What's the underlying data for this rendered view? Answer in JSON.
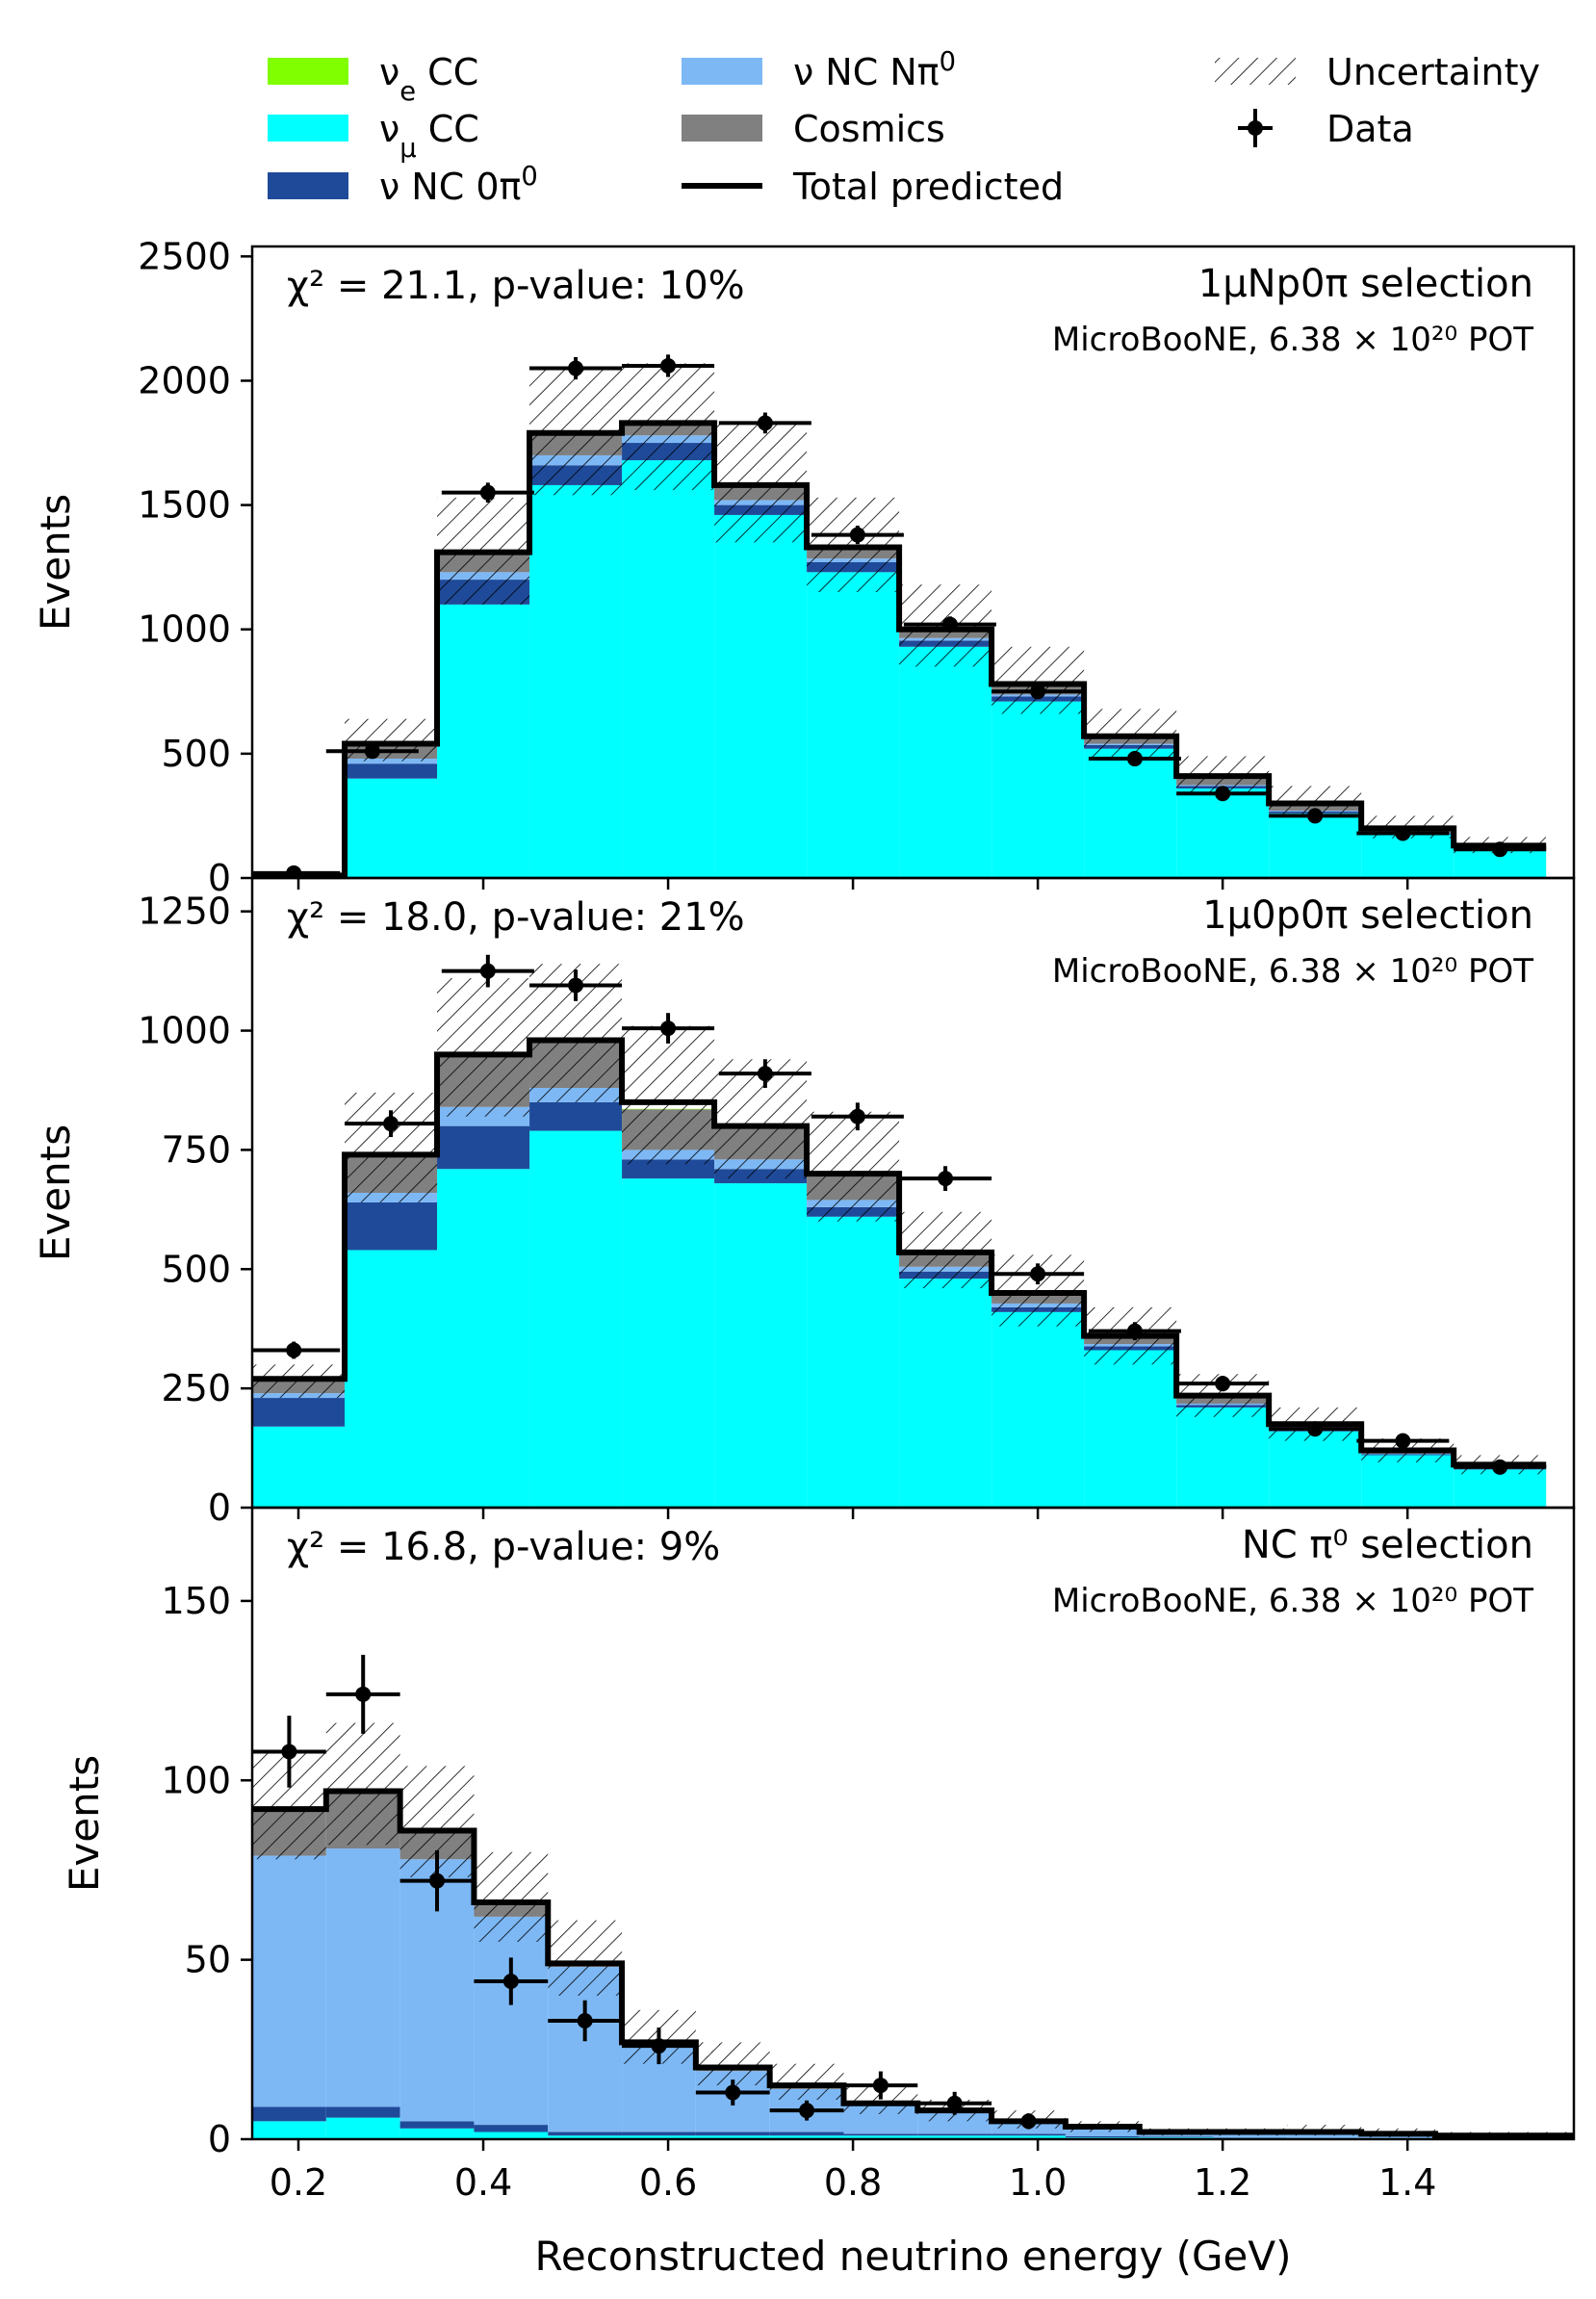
{
  "chart_data": {
    "type": "bar",
    "xlabel": "Reconstructed neutrino energy (GeV)",
    "xlim": [
      0.15,
      1.58
    ],
    "xticks": [
      "0.2",
      "0.4",
      "0.6",
      "0.8",
      "1.0",
      "1.2",
      "1.4"
    ],
    "xtick_values": [
      0.2,
      0.4,
      0.6,
      0.8,
      1.0,
      1.2,
      1.4
    ],
    "bin_edges": [
      0.15,
      0.25,
      0.35,
      0.45,
      0.55,
      0.65,
      0.75,
      0.85,
      0.95,
      1.05,
      1.15,
      1.25,
      1.35,
      1.45,
      1.55
    ],
    "colors": {
      "nue_cc": "#7fff00",
      "numu_cc": "#00ffff",
      "nc_0pi0": "#1f4a99",
      "nc_npi0": "#7db8f5",
      "cosmics": "#808080",
      "total": "#000000",
      "data": "#000000"
    },
    "legend": {
      "placement": "top",
      "items": [
        {
          "key": "nue_cc",
          "label_main": "ν",
          "label_sub": "e",
          "label_rest": " CC",
          "kind": "patch",
          "color": "#7fff00"
        },
        {
          "key": "numu_cc",
          "label_main": "ν",
          "label_sub": "μ",
          "label_rest": " CC",
          "kind": "patch",
          "color": "#00ffff"
        },
        {
          "key": "nc_0pi0",
          "label_main": "ν NC 0π",
          "label_sup": "0",
          "kind": "patch",
          "color": "#1f4a99"
        },
        {
          "key": "nc_npi0",
          "label_main": "ν NC Nπ",
          "label_sup": "0",
          "kind": "patch",
          "color": "#7db8f5"
        },
        {
          "key": "cosmics",
          "label_main": "Cosmics",
          "kind": "patch",
          "color": "#808080"
        },
        {
          "key": "total",
          "label_main": "Total predicted",
          "kind": "line",
          "color": "#000000"
        },
        {
          "key": "unc",
          "label_main": "Uncertainty",
          "kind": "hatch"
        },
        {
          "key": "data",
          "label_main": "Data",
          "kind": "errorbar"
        }
      ]
    },
    "panels": [
      {
        "ylabel": "Events",
        "ylim": [
          0,
          2540
        ],
        "yticks": [
          0,
          500,
          1000,
          1500,
          2000,
          2500
        ],
        "ytick_labels": [
          "0",
          "500",
          "1000",
          "1500",
          "2000",
          "2500"
        ],
        "chi2_label": "χ² = 21.1, p-value: 10%",
        "selection_label": "1μNp0π selection",
        "experiment_label": "MicroBooNE, 6.38 × 10²⁰ POT",
        "series": [
          {
            "key": "nue_cc",
            "name": "νe CC",
            "values": [
              0,
              0,
              2,
              3,
              3,
              3,
              3,
              2,
              2,
              2,
              2,
              1,
              1,
              1
            ]
          },
          {
            "key": "numu_cc",
            "name": "νμ CC",
            "values": [
              10,
              400,
              1100,
              1580,
              1680,
              1460,
              1230,
              930,
              710,
              520,
              360,
              260,
              175,
              112
            ]
          },
          {
            "key": "nc_0pi0",
            "name": "ν NC 0π0",
            "values": [
              0,
              60,
              100,
              80,
              70,
              40,
              40,
              25,
              20,
              15,
              10,
              8,
              5,
              3
            ]
          },
          {
            "key": "nc_npi0",
            "name": "ν NC Nπ0",
            "values": [
              0,
              20,
              30,
              40,
              30,
              20,
              15,
              10,
              8,
              5,
              4,
              3,
              2,
              1
            ]
          },
          {
            "key": "cosmics",
            "name": "Cosmics",
            "values": [
              0,
              60,
              80,
              90,
              50,
              60,
              40,
              30,
              40,
              30,
              30,
              30,
              20,
              13
            ]
          }
        ],
        "total": [
          10,
          540,
          1310,
          1790,
          1830,
          1580,
          1330,
          1000,
          780,
          570,
          410,
          300,
          200,
          130
        ],
        "unc_low": [
          8,
          470,
          1100,
          1540,
          1560,
          1350,
          1150,
          850,
          660,
          480,
          340,
          250,
          160,
          100
        ],
        "unc_high": [
          14,
          640,
          1530,
          2050,
          2070,
          1830,
          1530,
          1180,
          930,
          680,
          490,
          370,
          250,
          165
        ],
        "data": {
          "x": [
            0.195,
            0.28,
            0.405,
            0.5,
            0.6,
            0.705,
            0.805,
            0.905,
            1.0,
            1.105,
            1.2,
            1.3,
            1.395,
            1.5
          ],
          "y": [
            20,
            510,
            1550,
            2050,
            2060,
            1830,
            1380,
            1020,
            750,
            480,
            340,
            250,
            180,
            115
          ],
          "yerr": [
            5,
            22,
            40,
            45,
            45,
            42,
            37,
            32,
            27,
            22,
            18,
            16,
            13,
            11
          ],
          "xerr": [
            0.05,
            0.05,
            0.05,
            0.05,
            0.05,
            0.05,
            0.05,
            0.05,
            0.05,
            0.05,
            0.05,
            0.05,
            0.05,
            0.05
          ]
        }
      },
      {
        "ylabel": "Events",
        "ylim": [
          0,
          1320
        ],
        "yticks": [
          0,
          250,
          500,
          750,
          1000,
          1250
        ],
        "ytick_labels": [
          "0",
          "250",
          "500",
          "750",
          "1000",
          "1250"
        ],
        "chi2_label": "χ² = 18.0, p-value: 21%",
        "selection_label": "1μ0p0π selection",
        "experiment_label": "MicroBooNE, 6.38 × 10²⁰ POT",
        "series": [
          {
            "key": "nue_cc",
            "name": "νe CC",
            "values": [
              0,
              0,
              0,
              0,
              1,
              1,
              1,
              1,
              1,
              1,
              1,
              0,
              0,
              0
            ]
          },
          {
            "key": "numu_cc",
            "name": "νμ CC",
            "values": [
              170,
              540,
              710,
              790,
              690,
              680,
              610,
              480,
              410,
              330,
              210,
              160,
              110,
              80
            ]
          },
          {
            "key": "nc_0pi0",
            "name": "ν NC 0π0",
            "values": [
              60,
              100,
              90,
              60,
              40,
              30,
              20,
              15,
              10,
              8,
              5,
              3,
              2,
              1
            ]
          },
          {
            "key": "nc_npi0",
            "name": "ν NC Nπ0",
            "values": [
              10,
              20,
              40,
              30,
              20,
              20,
              15,
              10,
              8,
              5,
              3,
              2,
              1,
              1
            ]
          },
          {
            "key": "cosmics",
            "name": "Cosmics",
            "values": [
              30,
              80,
              110,
              100,
              85,
              70,
              55,
              30,
              20,
              16,
              16,
              9,
              7,
              8
            ]
          }
        ],
        "total": [
          270,
          740,
          950,
          980,
          850,
          800,
          700,
          535,
          450,
          360,
          235,
          175,
          120,
          90
        ],
        "unc_low": [
          230,
          640,
          820,
          850,
          720,
          690,
          600,
          460,
          380,
          300,
          190,
          140,
          95,
          70
        ],
        "unc_high": [
          300,
          870,
          1110,
          1140,
          1010,
          940,
          830,
          620,
          530,
          420,
          280,
          210,
          145,
          110
        ],
        "data": {
          "x": [
            0.195,
            0.3,
            0.405,
            0.5,
            0.6,
            0.705,
            0.805,
            0.9,
            1.0,
            1.105,
            1.2,
            1.3,
            1.395,
            1.5
          ],
          "y": [
            330,
            805,
            1125,
            1095,
            1005,
            910,
            820,
            690,
            490,
            370,
            260,
            165,
            140,
            85
          ],
          "yerr": [
            18,
            28,
            34,
            33,
            32,
            30,
            29,
            26,
            22,
            19,
            16,
            13,
            12,
            9
          ],
          "xerr": [
            0.05,
            0.05,
            0.05,
            0.05,
            0.05,
            0.05,
            0.05,
            0.05,
            0.05,
            0.05,
            0.05,
            0.05,
            0.05,
            0.05
          ]
        }
      },
      {
        "ylabel": "Events",
        "ylim": [
          0,
          176
        ],
        "yticks": [
          0,
          50,
          100,
          150
        ],
        "ytick_labels": [
          "0",
          "50",
          "100",
          "150"
        ],
        "chi2_label": "χ² = 16.8, p-value: 9%",
        "selection_label": "NC π⁰ selection",
        "experiment_label": "MicroBooNE, 6.38 × 10²⁰ POT",
        "bin_edges": [
          0.15,
          0.23,
          0.31,
          0.39,
          0.47,
          0.55,
          0.63,
          0.71,
          0.79,
          0.87,
          0.95,
          1.03,
          1.11,
          1.19,
          1.27,
          1.35,
          1.43,
          1.51,
          1.58
        ],
        "series": [
          {
            "key": "nue_cc",
            "name": "νe CC",
            "values": [
              0,
              0,
              0,
              0,
              0.5,
              0.5,
              0.5,
              0.3,
              0.3,
              0.3,
              0.2,
              0.2,
              0.1,
              0.1,
              0,
              0,
              0,
              0
            ]
          },
          {
            "key": "numu_cc",
            "name": "νμ CC",
            "values": [
              5,
              6,
              3,
              2,
              1,
              1,
              1,
              1,
              1,
              1,
              1,
              0.5,
              0.5,
              0.3,
              0.2,
              0.1,
              0,
              0
            ]
          },
          {
            "key": "nc_0pi0",
            "name": "ν NC 0π0",
            "values": [
              4,
              3,
              2,
              2,
              1,
              1,
              1,
              1,
              0.5,
              0.5,
              0.5,
              0.3,
              0.2,
              0.1,
              0.1,
              0,
              0,
              0
            ]
          },
          {
            "key": "nc_npi0",
            "name": "ν NC Nπ0",
            "values": [
              70,
              72,
              73,
              58,
              46,
              24,
              17,
              12,
              8,
              6,
              3,
              2,
              1,
              1,
              1.5,
              1,
              0.5,
              0.5
            ]
          },
          {
            "key": "cosmics",
            "name": "Cosmics",
            "values": [
              13,
              16,
              8,
              4,
              1,
              0.5,
              0.5,
              0.4,
              0.2,
              0.2,
              0.3,
              0.5,
              0.2,
              0.5,
              0.2,
              0.2,
              0.5,
              0.5
            ]
          }
        ],
        "total": [
          92,
          97,
          86,
          66,
          49,
          27,
          20,
          15,
          10,
          8,
          5,
          3.5,
          2,
          2,
          2,
          1.5,
          1,
          1
        ],
        "unc_low": [
          78,
          82,
          73,
          55,
          40,
          21,
          15,
          11,
          7,
          5,
          3,
          2,
          1,
          1,
          1,
          0.5,
          0.5,
          0.5
        ],
        "unc_high": [
          108,
          116,
          104,
          80,
          61,
          36,
          27,
          21,
          15,
          11,
          8,
          5,
          3,
          3,
          4,
          3,
          2,
          2
        ],
        "data": {
          "x": [
            0.19,
            0.27,
            0.35,
            0.43,
            0.51,
            0.59,
            0.67,
            0.75,
            0.83,
            0.91,
            0.99
          ],
          "y": [
            108,
            124,
            72,
            44,
            33,
            26,
            13,
            8,
            15,
            10,
            5
          ],
          "yerr": [
            10,
            11,
            8.5,
            6.6,
            5.7,
            5.1,
            3.6,
            2.8,
            3.9,
            3.2,
            2.2
          ],
          "xerr": [
            0.04,
            0.04,
            0.04,
            0.04,
            0.04,
            0.04,
            0.04,
            0.04,
            0.04,
            0.04,
            0.04
          ]
        }
      }
    ]
  }
}
